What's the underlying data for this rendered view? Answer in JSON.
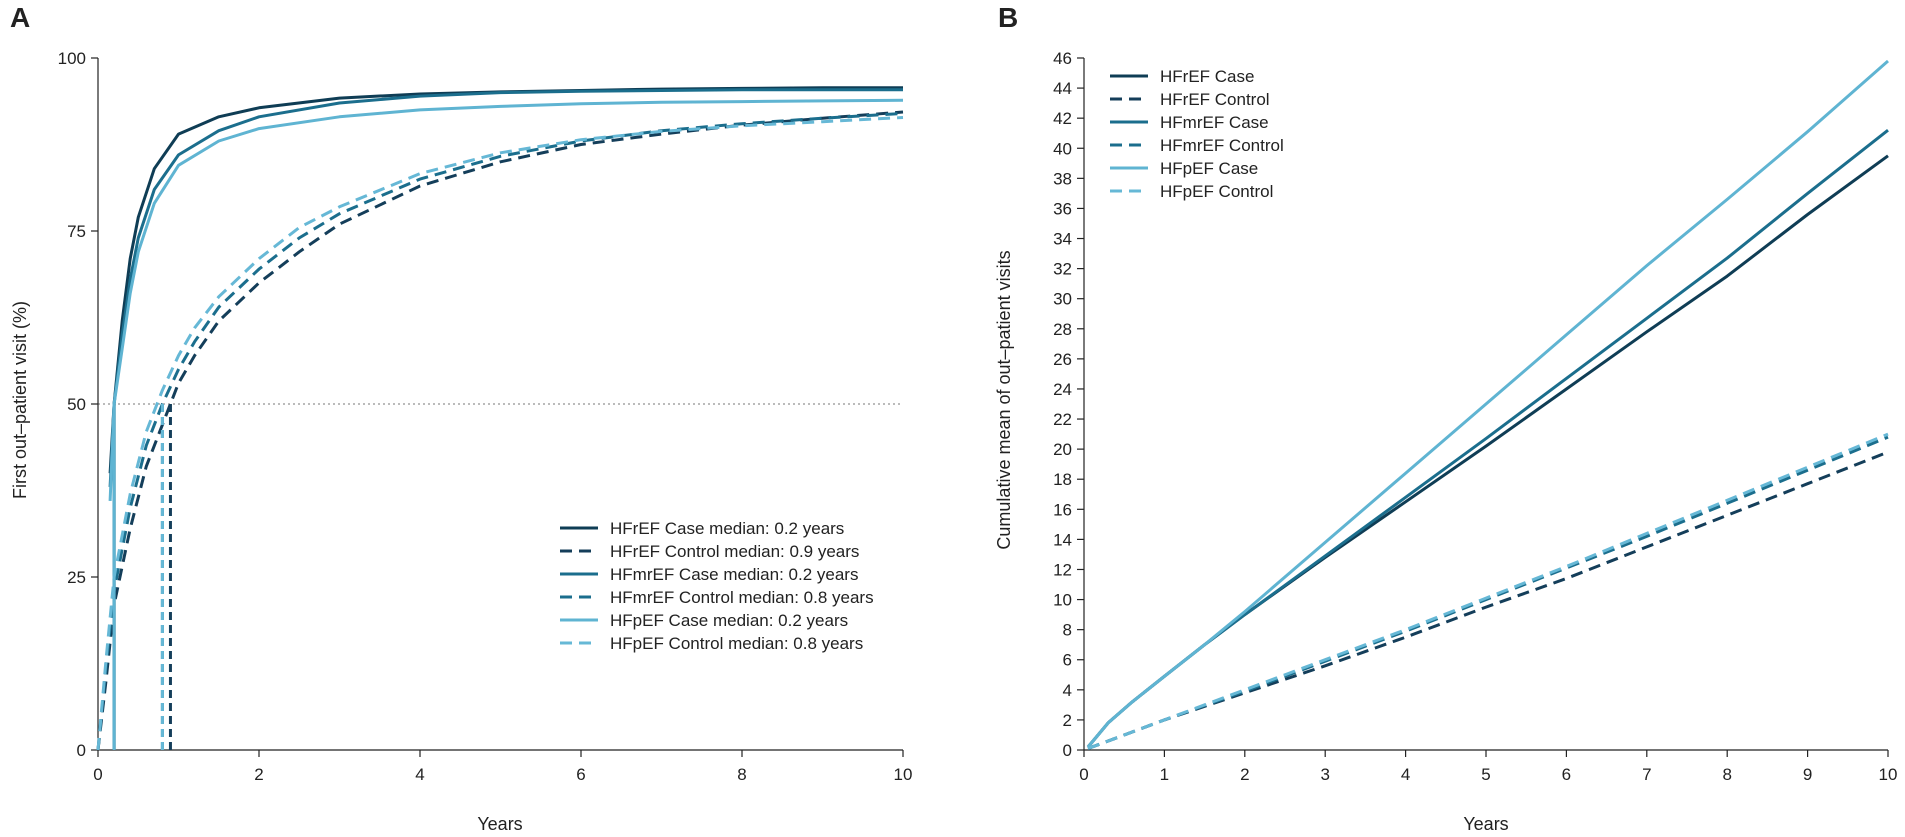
{
  "chart_data": [
    {
      "panel": "A",
      "type": "line",
      "xlabel": "Years",
      "ylabel": "First out–patient visit (%)",
      "xlim": [
        0,
        10
      ],
      "ylim": [
        0,
        100
      ],
      "xticks": [
        0,
        2,
        4,
        6,
        8,
        10
      ],
      "yticks": [
        0,
        25,
        50,
        75,
        100
      ],
      "reference_line": {
        "y": 50,
        "style": "dotted"
      },
      "legend_position": "bottom-right",
      "series": [
        {
          "name": "HFrEF Case median: 0.2 years",
          "color": "#0f3d55",
          "dash": "solid",
          "median": 0.2,
          "x": [
            0.15,
            0.2,
            0.3,
            0.4,
            0.5,
            0.7,
            1.0,
            1.5,
            2,
            3,
            4,
            5,
            6,
            7,
            8,
            9,
            10
          ],
          "y": [
            40,
            50,
            62,
            71,
            77,
            84,
            89,
            91.5,
            92.8,
            94.2,
            94.8,
            95.1,
            95.3,
            95.5,
            95.6,
            95.7,
            95.7
          ]
        },
        {
          "name": "HFrEF Control median: 0.9 years",
          "color": "#143e5a",
          "dash": "dashed",
          "median": 0.9,
          "x": [
            0.0,
            0.1,
            0.2,
            0.4,
            0.6,
            0.8,
            0.9,
            1.0,
            1.2,
            1.5,
            2,
            2.5,
            3,
            4,
            5,
            6,
            7,
            8,
            9,
            10
          ],
          "y": [
            0,
            10,
            21,
            32,
            41,
            47,
            50,
            53,
            57,
            62,
            67.5,
            72,
            76,
            81.5,
            85,
            87.5,
            89,
            90.3,
            91.3,
            92.2
          ]
        },
        {
          "name": "HFmrEF Case median: 0.2 years",
          "color": "#1b6e8d",
          "dash": "solid",
          "median": 0.2,
          "x": [
            0.15,
            0.2,
            0.3,
            0.4,
            0.5,
            0.7,
            1.0,
            1.5,
            2,
            3,
            4,
            5,
            6,
            7,
            8,
            9,
            10
          ],
          "y": [
            38,
            50,
            60,
            68,
            74,
            81,
            86,
            89.5,
            91.5,
            93.5,
            94.5,
            95,
            95.2,
            95.3,
            95.4,
            95.4,
            95.4
          ]
        },
        {
          "name": "HFmrEF Control median: 0.8 years",
          "color": "#1b6e8d",
          "dash": "dashed",
          "median": 0.8,
          "x": [
            0.0,
            0.1,
            0.2,
            0.4,
            0.6,
            0.8,
            1.0,
            1.2,
            1.5,
            2,
            2.5,
            3,
            4,
            5,
            6,
            7,
            8,
            9,
            10
          ],
          "y": [
            0,
            12,
            23,
            35,
            44,
            50,
            55,
            59,
            64,
            69.5,
            74,
            77.5,
            82.5,
            85.8,
            88,
            89.5,
            90.5,
            91.3,
            92
          ]
        },
        {
          "name": "HFpEF Case median: 0.2 years",
          "color": "#5fb4d2",
          "dash": "solid",
          "median": 0.2,
          "x": [
            0.15,
            0.2,
            0.3,
            0.4,
            0.5,
            0.7,
            1.0,
            1.5,
            2,
            3,
            4,
            5,
            6,
            7,
            8,
            9,
            10
          ],
          "y": [
            36,
            50,
            58,
            66,
            72,
            79,
            84.5,
            88,
            89.8,
            91.5,
            92.5,
            93,
            93.4,
            93.6,
            93.7,
            93.8,
            93.9
          ]
        },
        {
          "name": "HFpEF Control median: 0.8 years",
          "color": "#66b8d6",
          "dash": "dashed",
          "median": 0.8,
          "x": [
            0.0,
            0.1,
            0.2,
            0.4,
            0.6,
            0.8,
            1.0,
            1.2,
            1.5,
            2,
            2.5,
            3,
            4,
            5,
            6,
            7,
            8,
            9,
            10
          ],
          "y": [
            0,
            13,
            25,
            37,
            46,
            52,
            57,
            61,
            65.5,
            71,
            75.5,
            78.5,
            83.3,
            86.3,
            88.2,
            89.4,
            90.2,
            90.8,
            91.4
          ]
        }
      ]
    },
    {
      "panel": "B",
      "type": "line",
      "xlabel": "Years",
      "ylabel": "Cumulative mean of out–patient visits",
      "xlim": [
        0,
        10
      ],
      "ylim": [
        0,
        46
      ],
      "xticks": [
        0,
        1,
        2,
        3,
        4,
        5,
        6,
        7,
        8,
        9,
        10
      ],
      "yticks": [
        0,
        2,
        4,
        6,
        8,
        10,
        12,
        14,
        16,
        18,
        20,
        22,
        24,
        26,
        28,
        30,
        32,
        34,
        36,
        38,
        40,
        42,
        44,
        46
      ],
      "legend_position": "top-left",
      "series": [
        {
          "name": "HFrEF Case",
          "color": "#0f3d55",
          "dash": "solid",
          "x": [
            0.05,
            0.3,
            0.6,
            1,
            1.5,
            2,
            3,
            4,
            5,
            6,
            7,
            8,
            9,
            10
          ],
          "y": [
            0.2,
            1.8,
            3.2,
            4.9,
            7.0,
            9.0,
            12.8,
            16.5,
            20.2,
            24.0,
            27.8,
            31.5,
            35.6,
            39.5
          ]
        },
        {
          "name": "HFrEF Control",
          "color": "#143e5a",
          "dash": "dashed",
          "x": [
            0.05,
            0.5,
            1,
            2,
            3,
            4,
            5,
            6,
            7,
            8,
            9,
            10
          ],
          "y": [
            0.1,
            1.0,
            2.0,
            3.8,
            5.6,
            7.5,
            9.5,
            11.4,
            13.5,
            15.6,
            17.7,
            19.8
          ]
        },
        {
          "name": "HFmrEF Case",
          "color": "#1b6e8d",
          "dash": "solid",
          "x": [
            0.05,
            0.3,
            0.6,
            1,
            1.5,
            2,
            3,
            4,
            5,
            6,
            7,
            8,
            9,
            10
          ],
          "y": [
            0.2,
            1.8,
            3.2,
            4.9,
            7.0,
            9.0,
            12.9,
            16.8,
            20.7,
            24.7,
            28.7,
            32.7,
            37.0,
            41.2
          ]
        },
        {
          "name": "HFmrEF Control",
          "color": "#1b6e8d",
          "dash": "dashed",
          "x": [
            0.05,
            0.5,
            1,
            2,
            3,
            4,
            5,
            6,
            7,
            8,
            9,
            10
          ],
          "y": [
            0.1,
            1.0,
            2.0,
            3.9,
            5.9,
            7.9,
            10.0,
            12.1,
            14.2,
            16.4,
            18.6,
            20.8
          ]
        },
        {
          "name": "HFpEF Case",
          "color": "#5fb4d2",
          "dash": "solid",
          "x": [
            0.05,
            0.3,
            0.6,
            1,
            1.5,
            2,
            3,
            4,
            5,
            6,
            7,
            8,
            9,
            10
          ],
          "y": [
            0.2,
            1.8,
            3.2,
            4.9,
            7.0,
            9.2,
            13.8,
            18.4,
            23.0,
            27.6,
            32.2,
            36.6,
            41.1,
            45.8
          ]
        },
        {
          "name": "HFpEF Control",
          "color": "#66b8d6",
          "dash": "dashed",
          "x": [
            0.05,
            0.5,
            1,
            2,
            3,
            4,
            5,
            6,
            7,
            8,
            9,
            10
          ],
          "y": [
            0.1,
            1.0,
            2.0,
            4.0,
            6.0,
            8.0,
            10.1,
            12.2,
            14.4,
            16.6,
            18.8,
            21.0
          ]
        }
      ]
    }
  ]
}
